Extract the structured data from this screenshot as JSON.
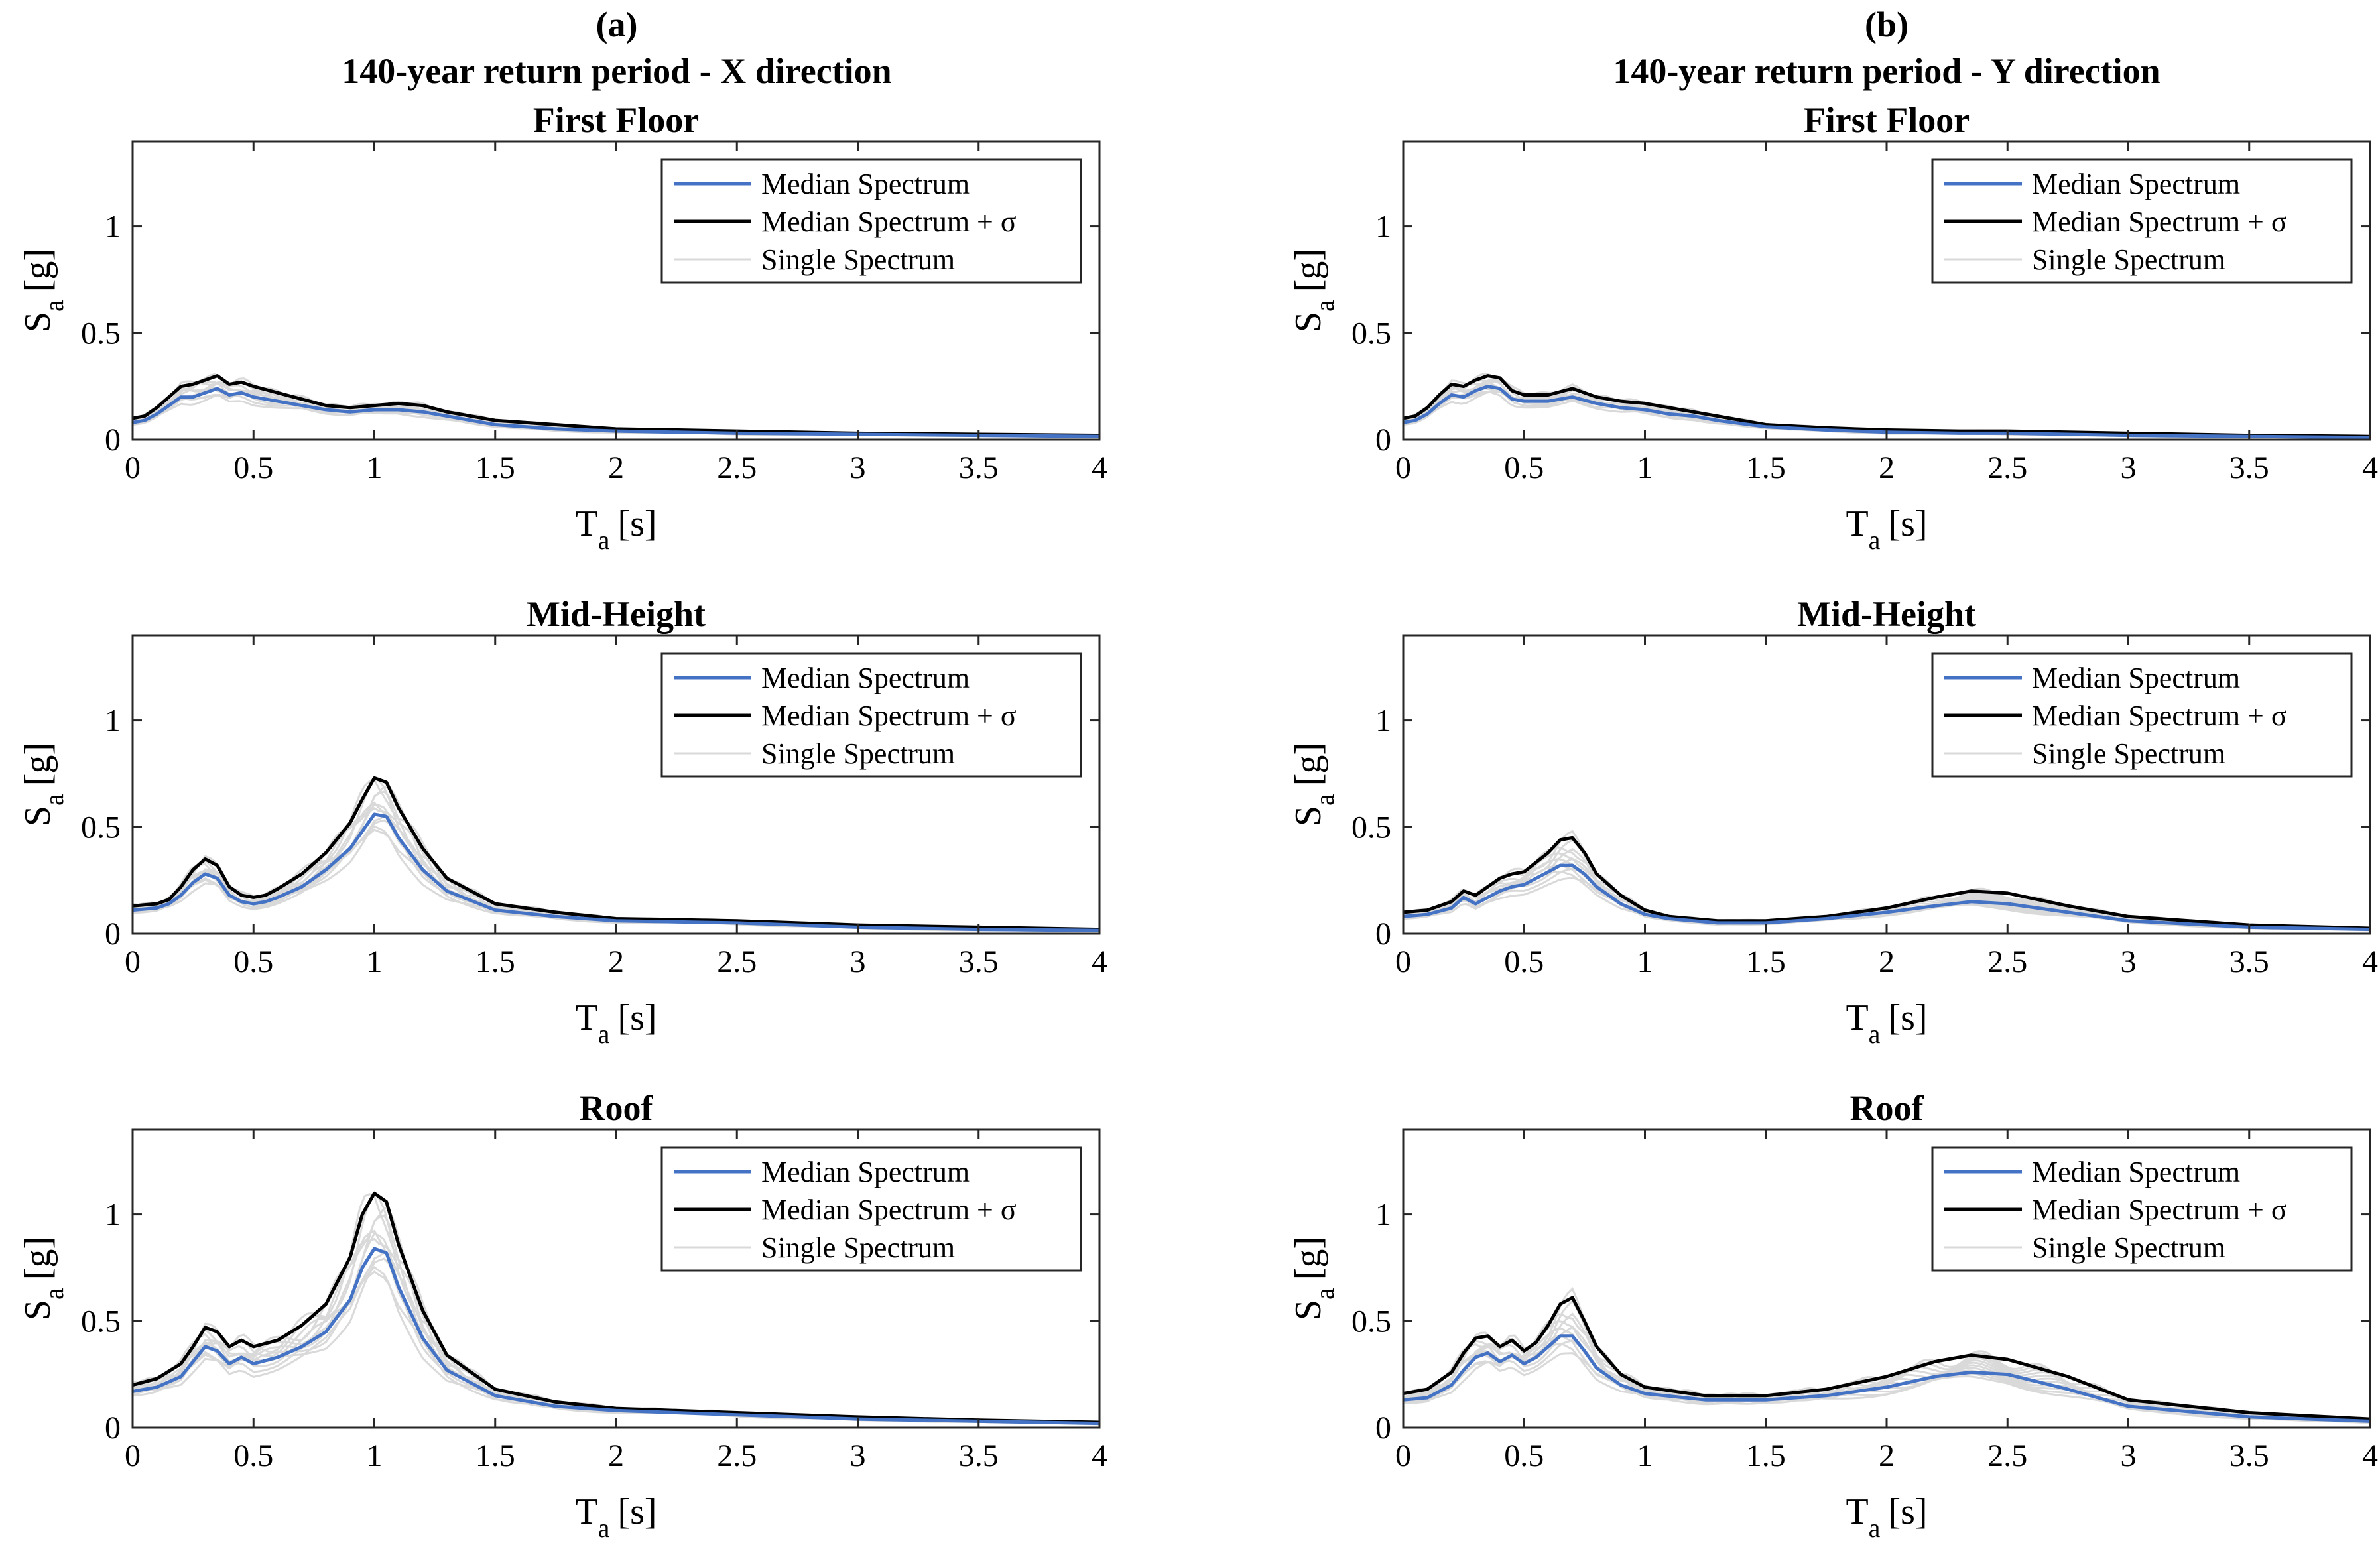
{
  "columns": [
    {
      "label": "(a)",
      "title": "140-year return period - X direction"
    },
    {
      "label": "(b)",
      "title": "140-year return period - Y direction"
    }
  ],
  "legend": {
    "median": "Median Spectrum",
    "median_sigma": "Median Spectrum + σ",
    "single": "Single Spectrum"
  },
  "colors": {
    "median": "#4472c4",
    "median_sigma": "#000000",
    "single": "#d9d9d9",
    "axes": "#262626",
    "background": "#ffffff"
  },
  "axis_text": {
    "ylabel_main": "S",
    "ylabel_sub": "a",
    "ylabel_unit": "[g]",
    "xlabel_main": "T",
    "xlabel_sub": "a",
    "xlabel_unit": "[s]"
  },
  "chart_data": [
    {
      "type": "line",
      "column": "(a)",
      "title": "First Floor",
      "xlabel": "T_a [s]",
      "ylabel": "S_a [g]",
      "xlim": [
        0,
        4
      ],
      "ylim": [
        0,
        1.4
      ],
      "xticks": [
        "0",
        "0.5",
        "1",
        "1.5",
        "2",
        "2.5",
        "3",
        "3.5",
        "4"
      ],
      "yticks": [
        "0",
        "0.5",
        "1"
      ],
      "grid": false,
      "legend_position": "top-right",
      "series": [
        {
          "name": "Median Spectrum",
          "x": [
            0,
            0.05,
            0.1,
            0.15,
            0.2,
            0.25,
            0.3,
            0.35,
            0.4,
            0.45,
            0.5,
            0.6,
            0.7,
            0.8,
            0.9,
            1.0,
            1.1,
            1.2,
            1.3,
            1.5,
            1.75,
            2.0,
            2.5,
            3.0,
            3.5,
            4.0
          ],
          "y": [
            0.08,
            0.09,
            0.12,
            0.16,
            0.2,
            0.2,
            0.22,
            0.24,
            0.21,
            0.22,
            0.2,
            0.18,
            0.16,
            0.14,
            0.13,
            0.14,
            0.14,
            0.13,
            0.11,
            0.07,
            0.05,
            0.04,
            0.03,
            0.025,
            0.02,
            0.015
          ]
        },
        {
          "name": "Median Spectrum + σ",
          "x": [
            0,
            0.05,
            0.1,
            0.15,
            0.2,
            0.25,
            0.3,
            0.35,
            0.4,
            0.45,
            0.5,
            0.6,
            0.7,
            0.8,
            0.9,
            1.0,
            1.1,
            1.2,
            1.3,
            1.5,
            1.75,
            2.0,
            2.5,
            3.0,
            3.5,
            4.0
          ],
          "y": [
            0.1,
            0.11,
            0.15,
            0.2,
            0.25,
            0.26,
            0.28,
            0.3,
            0.26,
            0.27,
            0.25,
            0.22,
            0.19,
            0.16,
            0.15,
            0.16,
            0.17,
            0.16,
            0.13,
            0.09,
            0.07,
            0.05,
            0.04,
            0.03,
            0.025,
            0.02
          ]
        }
      ]
    },
    {
      "type": "line",
      "column": "(b)",
      "title": "First Floor",
      "xlabel": "T_a [s]",
      "ylabel": "S_a [g]",
      "xlim": [
        0,
        4
      ],
      "ylim": [
        0,
        1.4
      ],
      "xticks": [
        "0",
        "0.5",
        "1",
        "1.5",
        "2",
        "2.5",
        "3",
        "3.5",
        "4"
      ],
      "yticks": [
        "0",
        "0.5",
        "1"
      ],
      "grid": false,
      "legend_position": "top-right",
      "series": [
        {
          "name": "Median Spectrum",
          "x": [
            0,
            0.05,
            0.1,
            0.15,
            0.2,
            0.25,
            0.3,
            0.35,
            0.4,
            0.45,
            0.5,
            0.6,
            0.7,
            0.8,
            0.9,
            1.0,
            1.1,
            1.2,
            1.3,
            1.5,
            1.75,
            2.0,
            2.3,
            2.5,
            3.0,
            3.5,
            4.0
          ],
          "y": [
            0.08,
            0.09,
            0.12,
            0.17,
            0.21,
            0.2,
            0.23,
            0.25,
            0.24,
            0.19,
            0.18,
            0.18,
            0.2,
            0.17,
            0.15,
            0.14,
            0.12,
            0.11,
            0.09,
            0.06,
            0.045,
            0.035,
            0.03,
            0.03,
            0.02,
            0.015,
            0.01
          ]
        },
        {
          "name": "Median Spectrum + σ",
          "x": [
            0,
            0.05,
            0.1,
            0.15,
            0.2,
            0.25,
            0.3,
            0.35,
            0.4,
            0.45,
            0.5,
            0.6,
            0.7,
            0.8,
            0.9,
            1.0,
            1.1,
            1.2,
            1.3,
            1.5,
            1.75,
            2.0,
            2.3,
            2.5,
            3.0,
            3.5,
            4.0
          ],
          "y": [
            0.1,
            0.11,
            0.15,
            0.21,
            0.26,
            0.25,
            0.28,
            0.3,
            0.29,
            0.23,
            0.21,
            0.21,
            0.24,
            0.2,
            0.18,
            0.17,
            0.15,
            0.13,
            0.11,
            0.07,
            0.055,
            0.045,
            0.04,
            0.04,
            0.03,
            0.02,
            0.015
          ]
        }
      ]
    },
    {
      "type": "line",
      "column": "(a)",
      "title": "Mid-Height",
      "xlabel": "T_a [s]",
      "ylabel": "S_a [g]",
      "xlim": [
        0,
        4
      ],
      "ylim": [
        0,
        1.4
      ],
      "xticks": [
        "0",
        "0.5",
        "1",
        "1.5",
        "2",
        "2.5",
        "3",
        "3.5",
        "4"
      ],
      "yticks": [
        "0",
        "0.5",
        "1"
      ],
      "grid": false,
      "legend_position": "top-right",
      "series": [
        {
          "name": "Median Spectrum",
          "x": [
            0,
            0.1,
            0.15,
            0.2,
            0.25,
            0.3,
            0.35,
            0.4,
            0.45,
            0.5,
            0.55,
            0.6,
            0.7,
            0.8,
            0.9,
            0.95,
            1.0,
            1.05,
            1.1,
            1.2,
            1.3,
            1.5,
            1.75,
            2.0,
            2.5,
            3.0,
            3.5,
            4.0
          ],
          "y": [
            0.11,
            0.12,
            0.14,
            0.18,
            0.24,
            0.28,
            0.26,
            0.18,
            0.15,
            0.14,
            0.15,
            0.17,
            0.22,
            0.3,
            0.4,
            0.48,
            0.56,
            0.55,
            0.45,
            0.3,
            0.2,
            0.11,
            0.08,
            0.06,
            0.05,
            0.03,
            0.02,
            0.015
          ]
        },
        {
          "name": "Median Spectrum + σ",
          "x": [
            0,
            0.1,
            0.15,
            0.2,
            0.25,
            0.3,
            0.35,
            0.4,
            0.45,
            0.5,
            0.55,
            0.6,
            0.7,
            0.8,
            0.9,
            0.95,
            1.0,
            1.05,
            1.1,
            1.2,
            1.3,
            1.5,
            1.75,
            2.0,
            2.5,
            3.0,
            3.5,
            4.0
          ],
          "y": [
            0.13,
            0.14,
            0.16,
            0.22,
            0.3,
            0.35,
            0.32,
            0.22,
            0.18,
            0.17,
            0.18,
            0.21,
            0.28,
            0.38,
            0.52,
            0.63,
            0.73,
            0.71,
            0.59,
            0.4,
            0.26,
            0.14,
            0.1,
            0.07,
            0.06,
            0.04,
            0.03,
            0.02
          ]
        }
      ]
    },
    {
      "type": "line",
      "column": "(b)",
      "title": "Mid-Height",
      "xlabel": "T_a [s]",
      "ylabel": "S_a [g]",
      "xlim": [
        0,
        4
      ],
      "ylim": [
        0,
        1.4
      ],
      "xticks": [
        "0",
        "0.5",
        "1",
        "1.5",
        "2",
        "2.5",
        "3",
        "3.5",
        "4"
      ],
      "yticks": [
        "0",
        "0.5",
        "1"
      ],
      "grid": false,
      "legend_position": "top-right",
      "series": [
        {
          "name": "Median Spectrum",
          "x": [
            0,
            0.1,
            0.2,
            0.25,
            0.3,
            0.4,
            0.45,
            0.5,
            0.6,
            0.65,
            0.7,
            0.75,
            0.8,
            0.9,
            1.0,
            1.1,
            1.3,
            1.5,
            1.75,
            2.0,
            2.2,
            2.35,
            2.5,
            2.75,
            3.0,
            3.5,
            4.0
          ],
          "y": [
            0.08,
            0.09,
            0.12,
            0.17,
            0.14,
            0.2,
            0.22,
            0.23,
            0.29,
            0.32,
            0.32,
            0.28,
            0.22,
            0.14,
            0.09,
            0.07,
            0.05,
            0.05,
            0.07,
            0.1,
            0.13,
            0.15,
            0.14,
            0.1,
            0.06,
            0.03,
            0.02
          ]
        },
        {
          "name": "Median Spectrum + σ",
          "x": [
            0,
            0.1,
            0.2,
            0.25,
            0.3,
            0.4,
            0.45,
            0.5,
            0.6,
            0.65,
            0.7,
            0.75,
            0.8,
            0.9,
            1.0,
            1.1,
            1.3,
            1.5,
            1.75,
            2.0,
            2.2,
            2.35,
            2.5,
            2.75,
            3.0,
            3.5,
            4.0
          ],
          "y": [
            0.1,
            0.11,
            0.15,
            0.2,
            0.18,
            0.26,
            0.28,
            0.29,
            0.38,
            0.44,
            0.45,
            0.38,
            0.28,
            0.18,
            0.11,
            0.08,
            0.06,
            0.06,
            0.08,
            0.12,
            0.17,
            0.2,
            0.19,
            0.13,
            0.08,
            0.04,
            0.025
          ]
        }
      ]
    },
    {
      "type": "line",
      "column": "(a)",
      "title": "Roof",
      "xlabel": "T_a [s]",
      "ylabel": "S_a [g]",
      "xlim": [
        0,
        4
      ],
      "ylim": [
        0,
        1.4
      ],
      "xticks": [
        "0",
        "0.5",
        "1",
        "1.5",
        "2",
        "2.5",
        "3",
        "3.5",
        "4"
      ],
      "yticks": [
        "0",
        "0.5",
        "1"
      ],
      "grid": false,
      "legend_position": "top-right",
      "series": [
        {
          "name": "Median Spectrum",
          "x": [
            0,
            0.1,
            0.2,
            0.25,
            0.3,
            0.35,
            0.4,
            0.45,
            0.5,
            0.6,
            0.7,
            0.8,
            0.9,
            0.95,
            1.0,
            1.05,
            1.1,
            1.2,
            1.3,
            1.5,
            1.75,
            2.0,
            2.5,
            3.0,
            3.5,
            4.0
          ],
          "y": [
            0.17,
            0.19,
            0.24,
            0.31,
            0.38,
            0.36,
            0.3,
            0.33,
            0.3,
            0.33,
            0.38,
            0.45,
            0.6,
            0.75,
            0.84,
            0.82,
            0.66,
            0.42,
            0.27,
            0.15,
            0.1,
            0.08,
            0.06,
            0.04,
            0.03,
            0.02
          ]
        },
        {
          "name": "Median Spectrum + σ",
          "x": [
            0,
            0.1,
            0.2,
            0.25,
            0.3,
            0.35,
            0.4,
            0.45,
            0.5,
            0.6,
            0.7,
            0.8,
            0.9,
            0.95,
            1.0,
            1.05,
            1.1,
            1.2,
            1.3,
            1.5,
            1.75,
            2.0,
            2.5,
            3.0,
            3.5,
            4.0
          ],
          "y": [
            0.2,
            0.23,
            0.3,
            0.38,
            0.47,
            0.45,
            0.38,
            0.41,
            0.38,
            0.41,
            0.48,
            0.58,
            0.8,
            1.0,
            1.1,
            1.06,
            0.86,
            0.55,
            0.34,
            0.18,
            0.12,
            0.09,
            0.07,
            0.05,
            0.035,
            0.025
          ]
        }
      ]
    },
    {
      "type": "line",
      "column": "(b)",
      "title": "Roof",
      "xlabel": "T_a [s]",
      "ylabel": "S_a [g]",
      "xlim": [
        0,
        4
      ],
      "ylim": [
        0,
        1.4
      ],
      "xticks": [
        "0",
        "0.5",
        "1",
        "1.5",
        "2",
        "2.5",
        "3",
        "3.5",
        "4"
      ],
      "yticks": [
        "0",
        "0.5",
        "1"
      ],
      "grid": false,
      "legend_position": "top-right",
      "series": [
        {
          "name": "Median Spectrum",
          "x": [
            0,
            0.1,
            0.2,
            0.25,
            0.3,
            0.35,
            0.4,
            0.45,
            0.5,
            0.55,
            0.6,
            0.65,
            0.7,
            0.75,
            0.8,
            0.9,
            1.0,
            1.25,
            1.5,
            1.75,
            2.0,
            2.2,
            2.35,
            2.5,
            2.75,
            3.0,
            3.5,
            4.0
          ],
          "y": [
            0.13,
            0.14,
            0.2,
            0.27,
            0.33,
            0.35,
            0.31,
            0.34,
            0.3,
            0.33,
            0.38,
            0.43,
            0.43,
            0.36,
            0.28,
            0.2,
            0.16,
            0.13,
            0.13,
            0.15,
            0.19,
            0.24,
            0.26,
            0.25,
            0.18,
            0.1,
            0.05,
            0.03
          ]
        },
        {
          "name": "Median Spectrum + σ",
          "x": [
            0,
            0.1,
            0.2,
            0.25,
            0.3,
            0.35,
            0.4,
            0.45,
            0.5,
            0.55,
            0.6,
            0.65,
            0.7,
            0.75,
            0.8,
            0.9,
            1.0,
            1.25,
            1.5,
            1.75,
            2.0,
            2.2,
            2.35,
            2.5,
            2.75,
            3.0,
            3.5,
            4.0
          ],
          "y": [
            0.16,
            0.18,
            0.26,
            0.35,
            0.42,
            0.43,
            0.38,
            0.41,
            0.36,
            0.4,
            0.48,
            0.58,
            0.61,
            0.5,
            0.38,
            0.25,
            0.19,
            0.15,
            0.15,
            0.18,
            0.24,
            0.31,
            0.34,
            0.32,
            0.24,
            0.13,
            0.07,
            0.04
          ]
        }
      ]
    }
  ]
}
